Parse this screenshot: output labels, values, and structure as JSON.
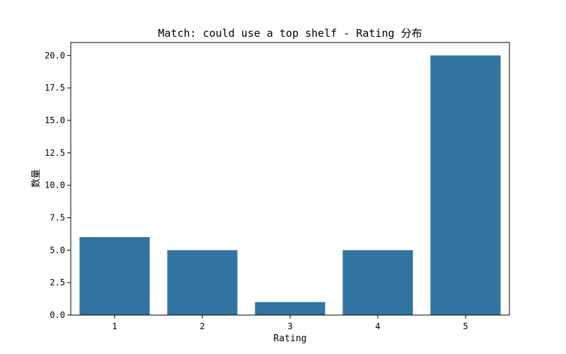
{
  "chart_data": {
    "type": "bar",
    "title": "Match: could use a top shelf - Rating 分布",
    "xlabel": "Rating",
    "ylabel": "数量",
    "categories": [
      "1",
      "2",
      "3",
      "4",
      "5"
    ],
    "values": [
      6,
      5,
      1,
      5,
      20
    ],
    "ylim": [
      0,
      21
    ],
    "yticks": [
      "0.0",
      "2.5",
      "5.0",
      "7.5",
      "10.0",
      "12.5",
      "15.0",
      "17.5",
      "20.0"
    ],
    "bar_color": "#3274a1",
    "grid": false,
    "legend": "none"
  }
}
